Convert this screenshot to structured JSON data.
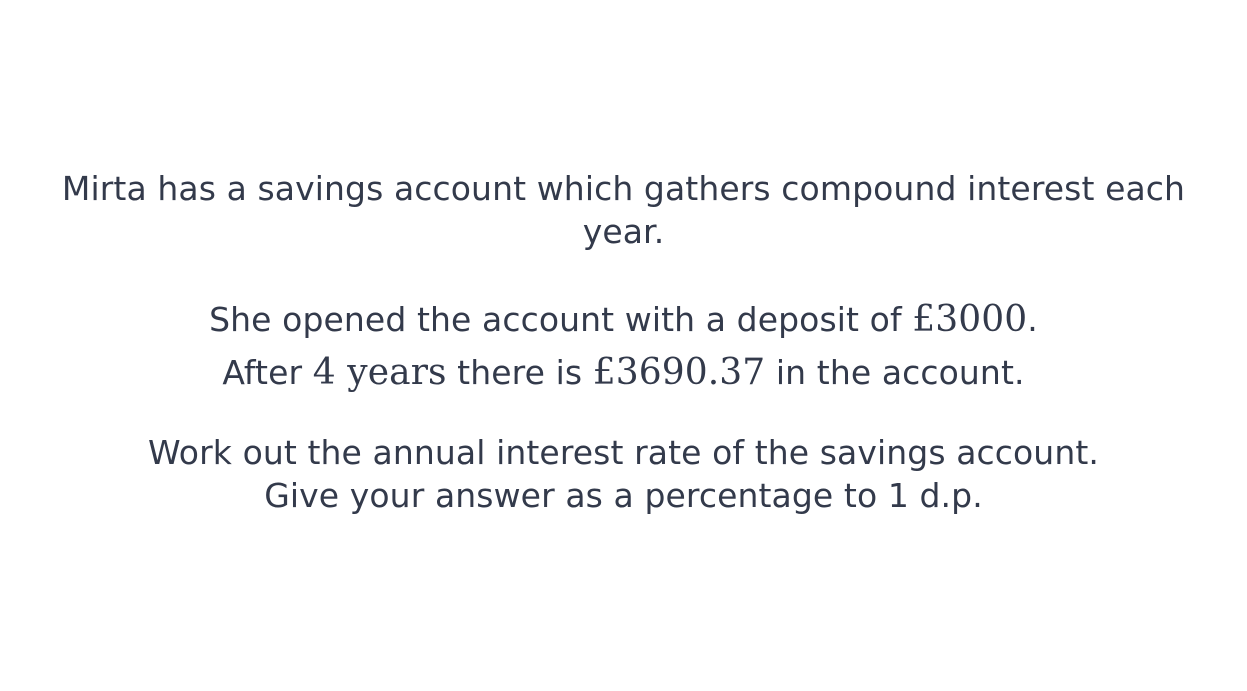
{
  "question": {
    "intro": "Mirta has a savings account which gathers compound interest each year.",
    "line2a_before": "She opened the account with a deposit of ",
    "line2a_math": "£3000",
    "line2a_after": ".",
    "line2b_before": "After ",
    "line2b_math": "4 years",
    "line2b_mid": " there is ",
    "line2b_math2": "£3690.37",
    "line2b_after": " in the account.",
    "task_line1": "Work out the annual interest rate of the savings account.",
    "task_line2": "Give your answer as a percentage to 1 d.p."
  }
}
